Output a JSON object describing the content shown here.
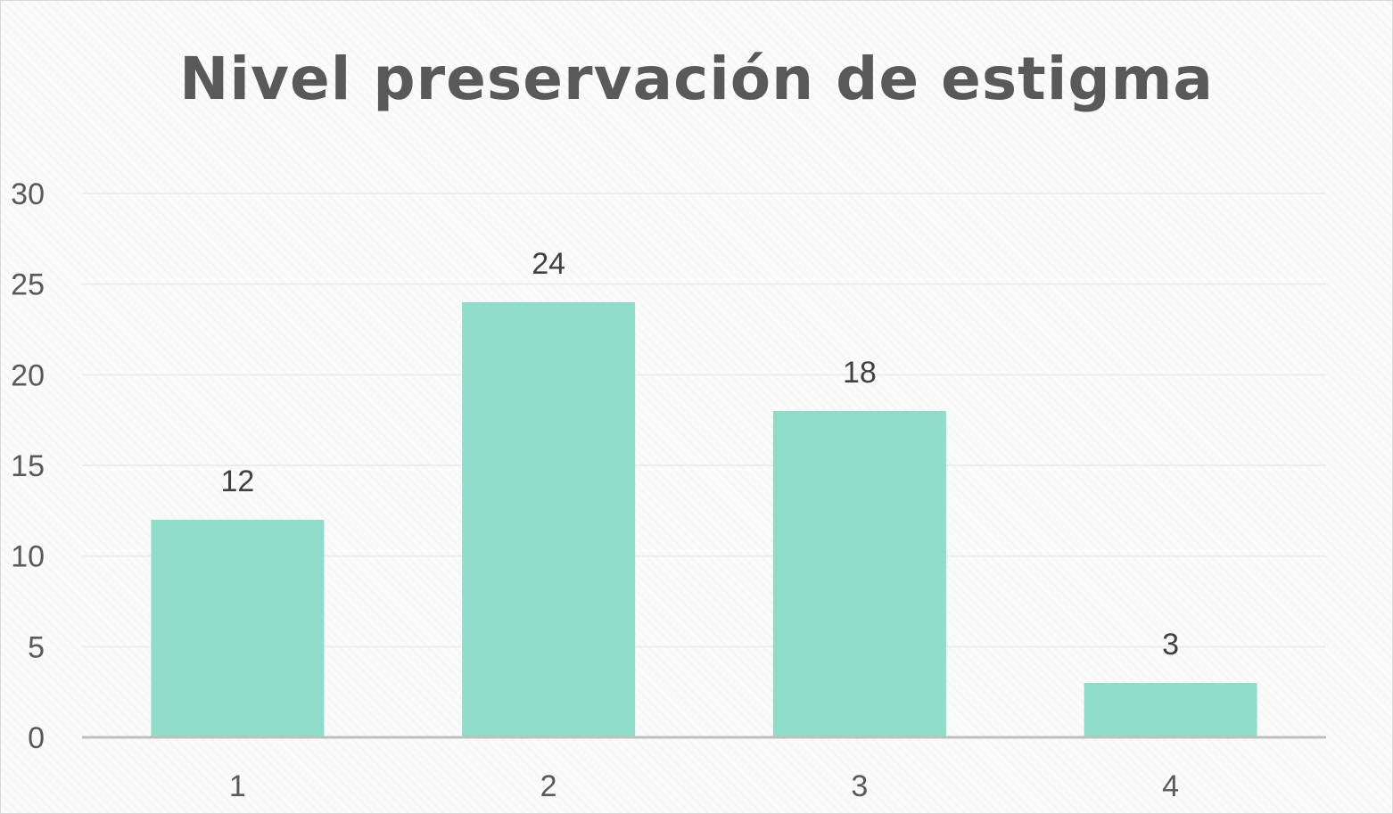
{
  "chart_data": {
    "type": "bar",
    "title": "Nivel preservación de estigma",
    "xlabel": "",
    "ylabel": "",
    "categories": [
      "1",
      "2",
      "3",
      "4"
    ],
    "values": [
      12,
      24,
      18,
      3
    ],
    "data_labels": [
      "12",
      "24",
      "18",
      "3"
    ],
    "ylim": [
      0,
      30
    ],
    "yticks": [
      "0",
      "5",
      "10",
      "15",
      "20",
      "25",
      "30"
    ],
    "grid": true,
    "legend": "none",
    "bar_color": "#8fdccb"
  }
}
